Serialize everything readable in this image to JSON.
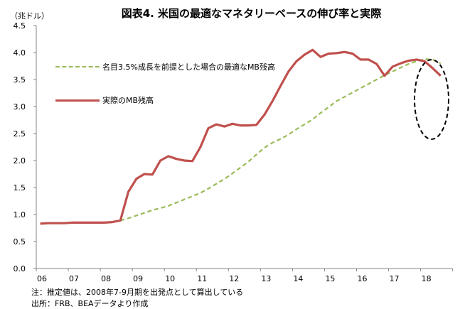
{
  "chart_data": {
    "type": "line",
    "title": "図表4. 米国の最適なマネタリーベースの伸び率と実際",
    "ylabel": "（兆ドル）",
    "xlabel": "",
    "ylim": [
      0,
      4.5
    ],
    "yticks": [
      "0.0",
      "0.5",
      "1.0",
      "1.5",
      "2.0",
      "2.5",
      "3.0",
      "3.5",
      "4.0",
      "4.5"
    ],
    "xtick_labels": [
      "06",
      "07",
      "08",
      "09",
      "10",
      "11",
      "12",
      "13",
      "14",
      "15",
      "16",
      "17",
      "18"
    ],
    "x_frequency": "quarterly, 2006Q1–2018Q3",
    "grid": false,
    "legend_position": "top-left",
    "series": [
      {
        "name": "名目3.5%成長を前提とした場合の最適なMB残高",
        "color": "#9BBB59",
        "style": "dashed",
        "values": [
          null,
          null,
          null,
          null,
          null,
          null,
          null,
          null,
          null,
          null,
          0.89,
          0.93,
          0.98,
          1.03,
          1.08,
          1.12,
          1.16,
          1.22,
          1.28,
          1.34,
          1.4,
          1.48,
          1.57,
          1.66,
          1.76,
          1.87,
          1.98,
          2.11,
          2.24,
          2.33,
          2.4,
          2.48,
          2.58,
          2.67,
          2.76,
          2.88,
          2.99,
          3.1,
          3.18,
          3.26,
          3.34,
          3.42,
          3.5,
          3.58,
          3.65,
          3.72,
          3.79,
          3.84,
          3.88,
          3.87,
          3.8
        ]
      },
      {
        "name": "実際のMB残高",
        "color": "#C0504D",
        "style": "solid",
        "values": [
          0.83,
          0.84,
          0.84,
          0.84,
          0.85,
          0.85,
          0.85,
          0.85,
          0.85,
          0.86,
          0.89,
          1.42,
          1.66,
          1.75,
          1.74,
          2.0,
          2.08,
          2.03,
          2.0,
          1.99,
          2.25,
          2.6,
          2.67,
          2.63,
          2.68,
          2.65,
          2.65,
          2.66,
          2.85,
          3.1,
          3.38,
          3.65,
          3.84,
          3.96,
          4.05,
          3.92,
          3.98,
          3.99,
          4.01,
          3.98,
          3.87,
          3.87,
          3.79,
          3.57,
          3.74,
          3.8,
          3.85,
          3.87,
          3.84,
          3.71,
          3.57
        ]
      }
    ],
    "annotation": "dashed ellipse highlighting 2018"
  },
  "notes": {
    "note": "注：推定値は、2008年7-9月期を出発点として算出している",
    "source": "出所：FRB、BEAデータより作成"
  }
}
